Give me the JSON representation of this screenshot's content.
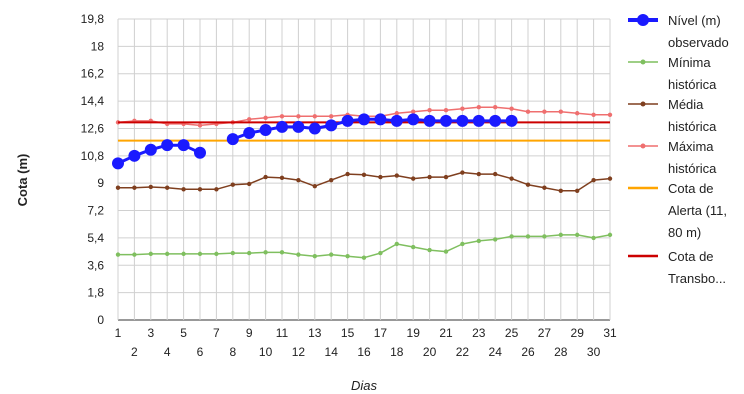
{
  "chart_data": {
    "type": "line",
    "title": "",
    "xlabel": "Dias",
    "ylabel": "Cota (m)",
    "ylim": [
      0,
      19.8
    ],
    "yticks": [
      "0",
      "1,8",
      "3,6",
      "5,4",
      "7,2",
      "9",
      "10,8",
      "12,6",
      "14,4",
      "16,2",
      "18",
      "19,8"
    ],
    "x": [
      1,
      2,
      3,
      4,
      5,
      6,
      7,
      8,
      9,
      10,
      11,
      12,
      13,
      14,
      15,
      16,
      17,
      18,
      19,
      20,
      21,
      22,
      23,
      24,
      25,
      26,
      27,
      28,
      29,
      30,
      31
    ],
    "grid": true,
    "legend_position": "right",
    "series": [
      {
        "name": "Nível (m) observado",
        "color": "#1a1aff",
        "values": [
          10.3,
          10.8,
          11.2,
          11.5,
          11.5,
          11.0,
          null,
          11.9,
          12.3,
          12.5,
          12.7,
          12.7,
          12.6,
          12.8,
          13.1,
          13.2,
          13.2,
          13.1,
          13.2,
          13.1,
          13.1,
          13.1,
          13.1,
          13.1,
          13.1,
          null,
          null,
          null,
          null,
          null,
          null
        ]
      },
      {
        "name": "Mínima histórica",
        "color": "#7fbf5f",
        "values": [
          4.3,
          4.3,
          4.35,
          4.35,
          4.35,
          4.35,
          4.35,
          4.4,
          4.4,
          4.45,
          4.45,
          4.3,
          4.2,
          4.3,
          4.2,
          4.1,
          4.4,
          5.0,
          4.8,
          4.6,
          4.5,
          5.0,
          5.2,
          5.3,
          5.5,
          5.5,
          5.5,
          5.6,
          5.6,
          5.4,
          5.6
        ]
      },
      {
        "name": "Média histórica",
        "color": "#7f3f1f",
        "values": [
          8.7,
          8.7,
          8.75,
          8.7,
          8.6,
          8.6,
          8.6,
          8.9,
          8.95,
          9.4,
          9.35,
          9.2,
          8.8,
          9.2,
          9.6,
          9.55,
          9.4,
          9.5,
          9.3,
          9.4,
          9.4,
          9.7,
          9.6,
          9.6,
          9.3,
          8.9,
          8.7,
          8.5,
          8.5,
          9.2,
          9.3
        ]
      },
      {
        "name": "Máxima histórica",
        "color": "#ef6f6f",
        "values": [
          13.0,
          13.1,
          13.1,
          12.9,
          12.9,
          12.8,
          12.9,
          13.0,
          13.2,
          13.3,
          13.4,
          13.4,
          13.4,
          13.4,
          13.5,
          13.4,
          13.4,
          13.6,
          13.7,
          13.8,
          13.8,
          13.9,
          14.0,
          14.0,
          13.9,
          13.7,
          13.7,
          13.7,
          13.6,
          13.5,
          13.5
        ]
      },
      {
        "name": "Cota de Alerta (11,80 m)",
        "color": "#ffa500",
        "values": [
          11.8,
          11.8,
          11.8,
          11.8,
          11.8,
          11.8,
          11.8,
          11.8,
          11.8,
          11.8,
          11.8,
          11.8,
          11.8,
          11.8,
          11.8,
          11.8,
          11.8,
          11.8,
          11.8,
          11.8,
          11.8,
          11.8,
          11.8,
          11.8,
          11.8,
          11.8,
          11.8,
          11.8,
          11.8,
          11.8,
          11.8
        ]
      },
      {
        "name": "Cota de Transbordamento",
        "color": "#cc0000",
        "values": [
          13.0,
          13.0,
          13.0,
          13.0,
          13.0,
          13.0,
          13.0,
          13.0,
          13.0,
          13.0,
          13.0,
          13.0,
          13.0,
          13.0,
          13.0,
          13.0,
          13.0,
          13.0,
          13.0,
          13.0,
          13.0,
          13.0,
          13.0,
          13.0,
          13.0,
          13.0,
          13.0,
          13.0,
          13.0,
          13.0,
          13.0
        ]
      }
    ]
  },
  "legend": [
    {
      "lines": [
        "Nível (m)",
        "observado"
      ]
    },
    {
      "lines": [
        "Mínima",
        "histórica"
      ]
    },
    {
      "lines": [
        "Média",
        "histórica"
      ]
    },
    {
      "lines": [
        "Máxima",
        "histórica"
      ]
    },
    {
      "lines": [
        "Cota de",
        "Alerta (11,",
        "80 m)"
      ]
    },
    {
      "lines": [
        "Cota de",
        "Transbo..."
      ]
    }
  ]
}
